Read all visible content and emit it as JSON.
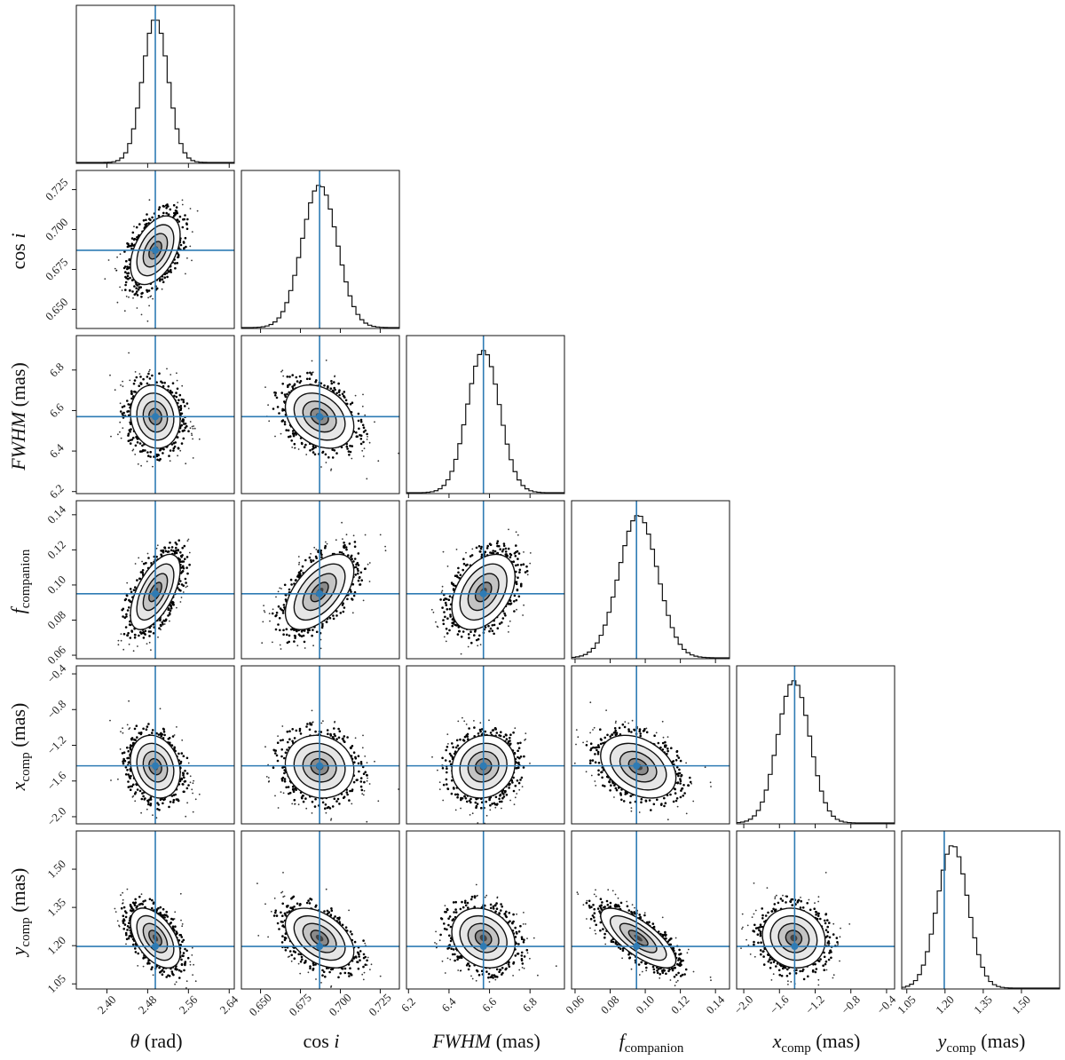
{
  "chart_data": {
    "type": "corner",
    "parameters": [
      {
        "id": "theta",
        "label": "θ (rad)",
        "truth": 2.495,
        "range": [
          2.34,
          2.65
        ],
        "ticks": [
          2.4,
          2.48,
          2.56,
          2.64
        ],
        "tick_labels": [
          "2.40",
          "2.48",
          "2.56",
          "2.64"
        ],
        "mean": 2.495,
        "sd": 0.025
      },
      {
        "id": "cosi",
        "label": "cos i",
        "truth": 0.687,
        "range": [
          0.638,
          0.737
        ],
        "ticks": [
          0.65,
          0.675,
          0.7,
          0.725
        ],
        "tick_labels": [
          "0.650",
          "0.675",
          "0.700",
          "0.725"
        ],
        "mean": 0.687,
        "sd": 0.011
      },
      {
        "id": "fwhm",
        "label": "FWHM (mas)",
        "truth": 6.57,
        "range": [
          6.19,
          6.97
        ],
        "ticks": [
          6.2,
          6.4,
          6.6,
          6.8
        ],
        "tick_labels": [
          "6.2",
          "6.4",
          "6.6",
          "6.8"
        ],
        "mean": 6.57,
        "sd": 0.08
      },
      {
        "id": "fcomp",
        "label": "f companion",
        "truth": 0.095,
        "range": [
          0.058,
          0.148
        ],
        "ticks": [
          0.06,
          0.08,
          0.1,
          0.12,
          0.14
        ],
        "tick_labels": [
          "0.06",
          "0.08",
          "0.10",
          "0.12",
          "0.14"
        ],
        "mean": 0.096,
        "sd": 0.011
      },
      {
        "id": "xcomp",
        "label": "x comp (mas)",
        "truth": -1.43,
        "range": [
          -2.08,
          -0.31
        ],
        "ticks": [
          -2.0,
          -1.6,
          -1.2,
          -0.8,
          -0.4
        ],
        "tick_labels": [
          "−2.0",
          "−1.6",
          "−1.2",
          "−0.8",
          "−0.4"
        ],
        "mean": -1.44,
        "sd": 0.18
      },
      {
        "id": "ycomp",
        "label": "y comp (mas)",
        "truth": 1.197,
        "range": [
          1.03,
          1.65
        ],
        "ticks": [
          1.05,
          1.2,
          1.35,
          1.5
        ],
        "tick_labels": [
          "1.05",
          "1.20",
          "1.35",
          "1.50"
        ],
        "mean": 1.23,
        "sd": 0.06
      }
    ],
    "y_tick_labels": {
      "cosi": [
        "0.650",
        "0.675",
        "0.700",
        "0.725"
      ],
      "fwhm": [
        "6.2",
        "6.4",
        "6.6",
        "6.8"
      ],
      "fcomp": [
        "0.06",
        "0.08",
        "0.10",
        "0.12",
        "0.14"
      ],
      "xcomp": [
        "−2.0",
        "−1.6",
        "−1.2",
        "−0.8",
        "−0.4"
      ],
      "ycomp": [
        "1.05",
        "1.20",
        "1.35",
        "1.50"
      ]
    },
    "correlations": {
      "cosi|theta": 0.45,
      "fwhm|theta": -0.1,
      "fwhm|cosi": -0.3,
      "fcomp|theta": 0.6,
      "fcomp|cosi": 0.55,
      "fcomp|fwhm": 0.4,
      "xcomp|theta": -0.2,
      "xcomp|cosi": -0.1,
      "xcomp|fwhm": 0.1,
      "xcomp|fcomp": -0.35,
      "ycomp|theta": -0.5,
      "ycomp|cosi": -0.45,
      "ycomp|fwhm": -0.2,
      "ycomp|fcomp": -0.75,
      "ycomp|xcomp": -0.1
    },
    "truth_line_color": "#2e7bb4",
    "grid": false,
    "legend": "none"
  }
}
